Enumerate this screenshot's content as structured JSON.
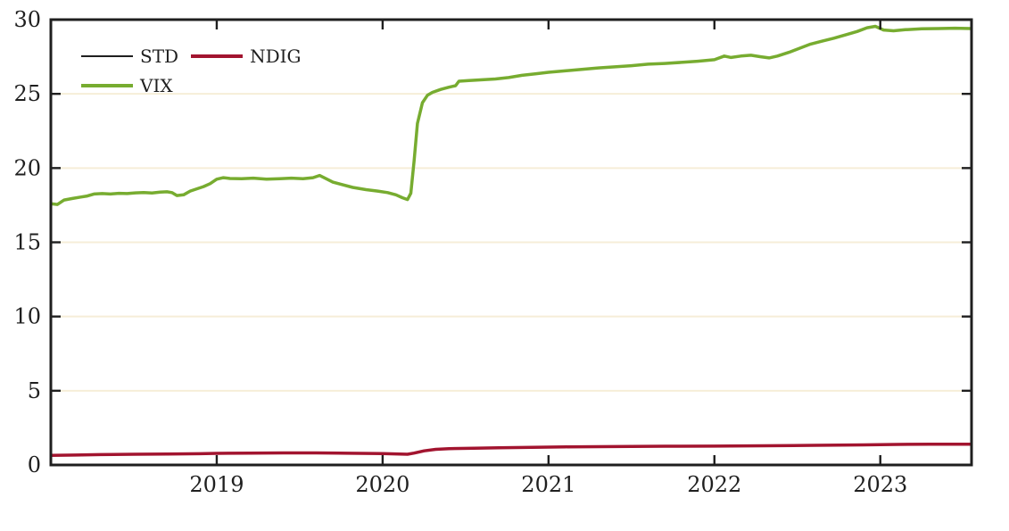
{
  "figure": {
    "background": "#ffffff",
    "frame_color": "#1f1f1f",
    "grid_color": "#f6eed8",
    "text_color": "#1f1f1f"
  },
  "legend": {
    "position": "top-left-inside",
    "items": [
      {
        "label": "STD",
        "color": "#1f1f1f",
        "thickness": 2
      },
      {
        "label": "NDIG",
        "color": "#A2142F",
        "thickness": 4
      },
      {
        "label": "VIX",
        "color": "#77AC30",
        "thickness": 4
      }
    ]
  },
  "chart_data": {
    "type": "line",
    "title": "",
    "xlabel": "",
    "ylabel": "",
    "x_unit": "year",
    "xlim": [
      2018.0,
      2023.55
    ],
    "ylim": [
      0,
      30
    ],
    "grid": "horizontal",
    "legend_position": "top-left-inside",
    "x_ticks": [
      {
        "value": 2019,
        "label": "2019"
      },
      {
        "value": 2020,
        "label": "2020"
      },
      {
        "value": 2021,
        "label": "2021"
      },
      {
        "value": 2022,
        "label": "2022"
      },
      {
        "value": 2023,
        "label": "2023"
      }
    ],
    "y_ticks": [
      {
        "value": 0,
        "label": "0"
      },
      {
        "value": 5,
        "label": "5"
      },
      {
        "value": 10,
        "label": "10"
      },
      {
        "value": 15,
        "label": "15"
      },
      {
        "value": 20,
        "label": "20"
      },
      {
        "value": 25,
        "label": "25"
      },
      {
        "value": 30,
        "label": "30"
      }
    ],
    "series": [
      {
        "name": "STD",
        "color": "#1f1f1f",
        "width": 1.6,
        "hidden_behind": "NDIG",
        "same_as": "NDIG"
      },
      {
        "name": "NDIG",
        "color": "#A2142F",
        "width": 3.5,
        "x": [
          2018.0,
          2018.15,
          2018.3,
          2018.5,
          2018.7,
          2018.9,
          2019.0,
          2019.2,
          2019.4,
          2019.6,
          2019.8,
          2020.0,
          2020.1,
          2020.15,
          2020.19,
          2020.25,
          2020.32,
          2020.4,
          2020.55,
          2020.7,
          2020.9,
          2021.1,
          2021.4,
          2021.7,
          2022.0,
          2022.3,
          2022.6,
          2022.9,
          2023.1,
          2023.3,
          2023.55
        ],
        "y": [
          0.65,
          0.67,
          0.7,
          0.72,
          0.74,
          0.76,
          0.78,
          0.8,
          0.81,
          0.81,
          0.79,
          0.77,
          0.74,
          0.72,
          0.8,
          0.95,
          1.05,
          1.1,
          1.13,
          1.16,
          1.19,
          1.22,
          1.24,
          1.26,
          1.27,
          1.29,
          1.32,
          1.35,
          1.38,
          1.4,
          1.4
        ]
      },
      {
        "name": "VIX",
        "color": "#77AC30",
        "width": 3.5,
        "x": [
          2018.0,
          2018.04,
          2018.08,
          2018.13,
          2018.18,
          2018.22,
          2018.26,
          2018.31,
          2018.36,
          2018.41,
          2018.46,
          2018.51,
          2018.56,
          2018.61,
          2018.66,
          2018.7,
          2018.73,
          2018.76,
          2018.8,
          2018.84,
          2018.88,
          2018.92,
          2018.96,
          2019.0,
          2019.04,
          2019.08,
          2019.15,
          2019.22,
          2019.3,
          2019.38,
          2019.45,
          2019.52,
          2019.58,
          2019.62,
          2019.66,
          2019.7,
          2019.75,
          2019.82,
          2019.9,
          2019.97,
          2020.03,
          2020.08,
          2020.12,
          2020.15,
          2020.17,
          2020.19,
          2020.21,
          2020.24,
          2020.27,
          2020.3,
          2020.35,
          2020.4,
          2020.44,
          2020.46,
          2020.52,
          2020.6,
          2020.68,
          2020.76,
          2020.84,
          2020.92,
          2021.0,
          2021.1,
          2021.2,
          2021.3,
          2021.4,
          2021.5,
          2021.6,
          2021.7,
          2021.8,
          2021.9,
          2022.0,
          2022.06,
          2022.1,
          2022.16,
          2022.22,
          2022.28,
          2022.33,
          2022.38,
          2022.45,
          2022.52,
          2022.58,
          2022.65,
          2022.72,
          2022.8,
          2022.86,
          2022.92,
          2022.97,
          2023.02,
          2023.08,
          2023.15,
          2023.25,
          2023.35,
          2023.45,
          2023.55
        ],
        "y": [
          17.6,
          17.55,
          17.85,
          17.95,
          18.05,
          18.12,
          18.25,
          18.28,
          18.25,
          18.3,
          18.28,
          18.33,
          18.35,
          18.32,
          18.38,
          18.4,
          18.35,
          18.15,
          18.2,
          18.45,
          18.6,
          18.75,
          18.95,
          19.25,
          19.35,
          19.3,
          19.28,
          19.32,
          19.25,
          19.28,
          19.32,
          19.28,
          19.35,
          19.5,
          19.28,
          19.05,
          18.9,
          18.7,
          18.55,
          18.45,
          18.35,
          18.2,
          18.0,
          17.88,
          18.3,
          20.5,
          23.0,
          24.4,
          24.9,
          25.1,
          25.3,
          25.45,
          25.55,
          25.85,
          25.9,
          25.95,
          26.0,
          26.1,
          26.25,
          26.35,
          26.45,
          26.55,
          26.65,
          26.75,
          26.82,
          26.9,
          27.0,
          27.05,
          27.12,
          27.2,
          27.3,
          27.55,
          27.45,
          27.55,
          27.6,
          27.5,
          27.42,
          27.55,
          27.8,
          28.1,
          28.35,
          28.55,
          28.75,
          29.0,
          29.2,
          29.45,
          29.55,
          29.3,
          29.25,
          29.32,
          29.38,
          29.4,
          29.42,
          29.4
        ]
      }
    ]
  }
}
